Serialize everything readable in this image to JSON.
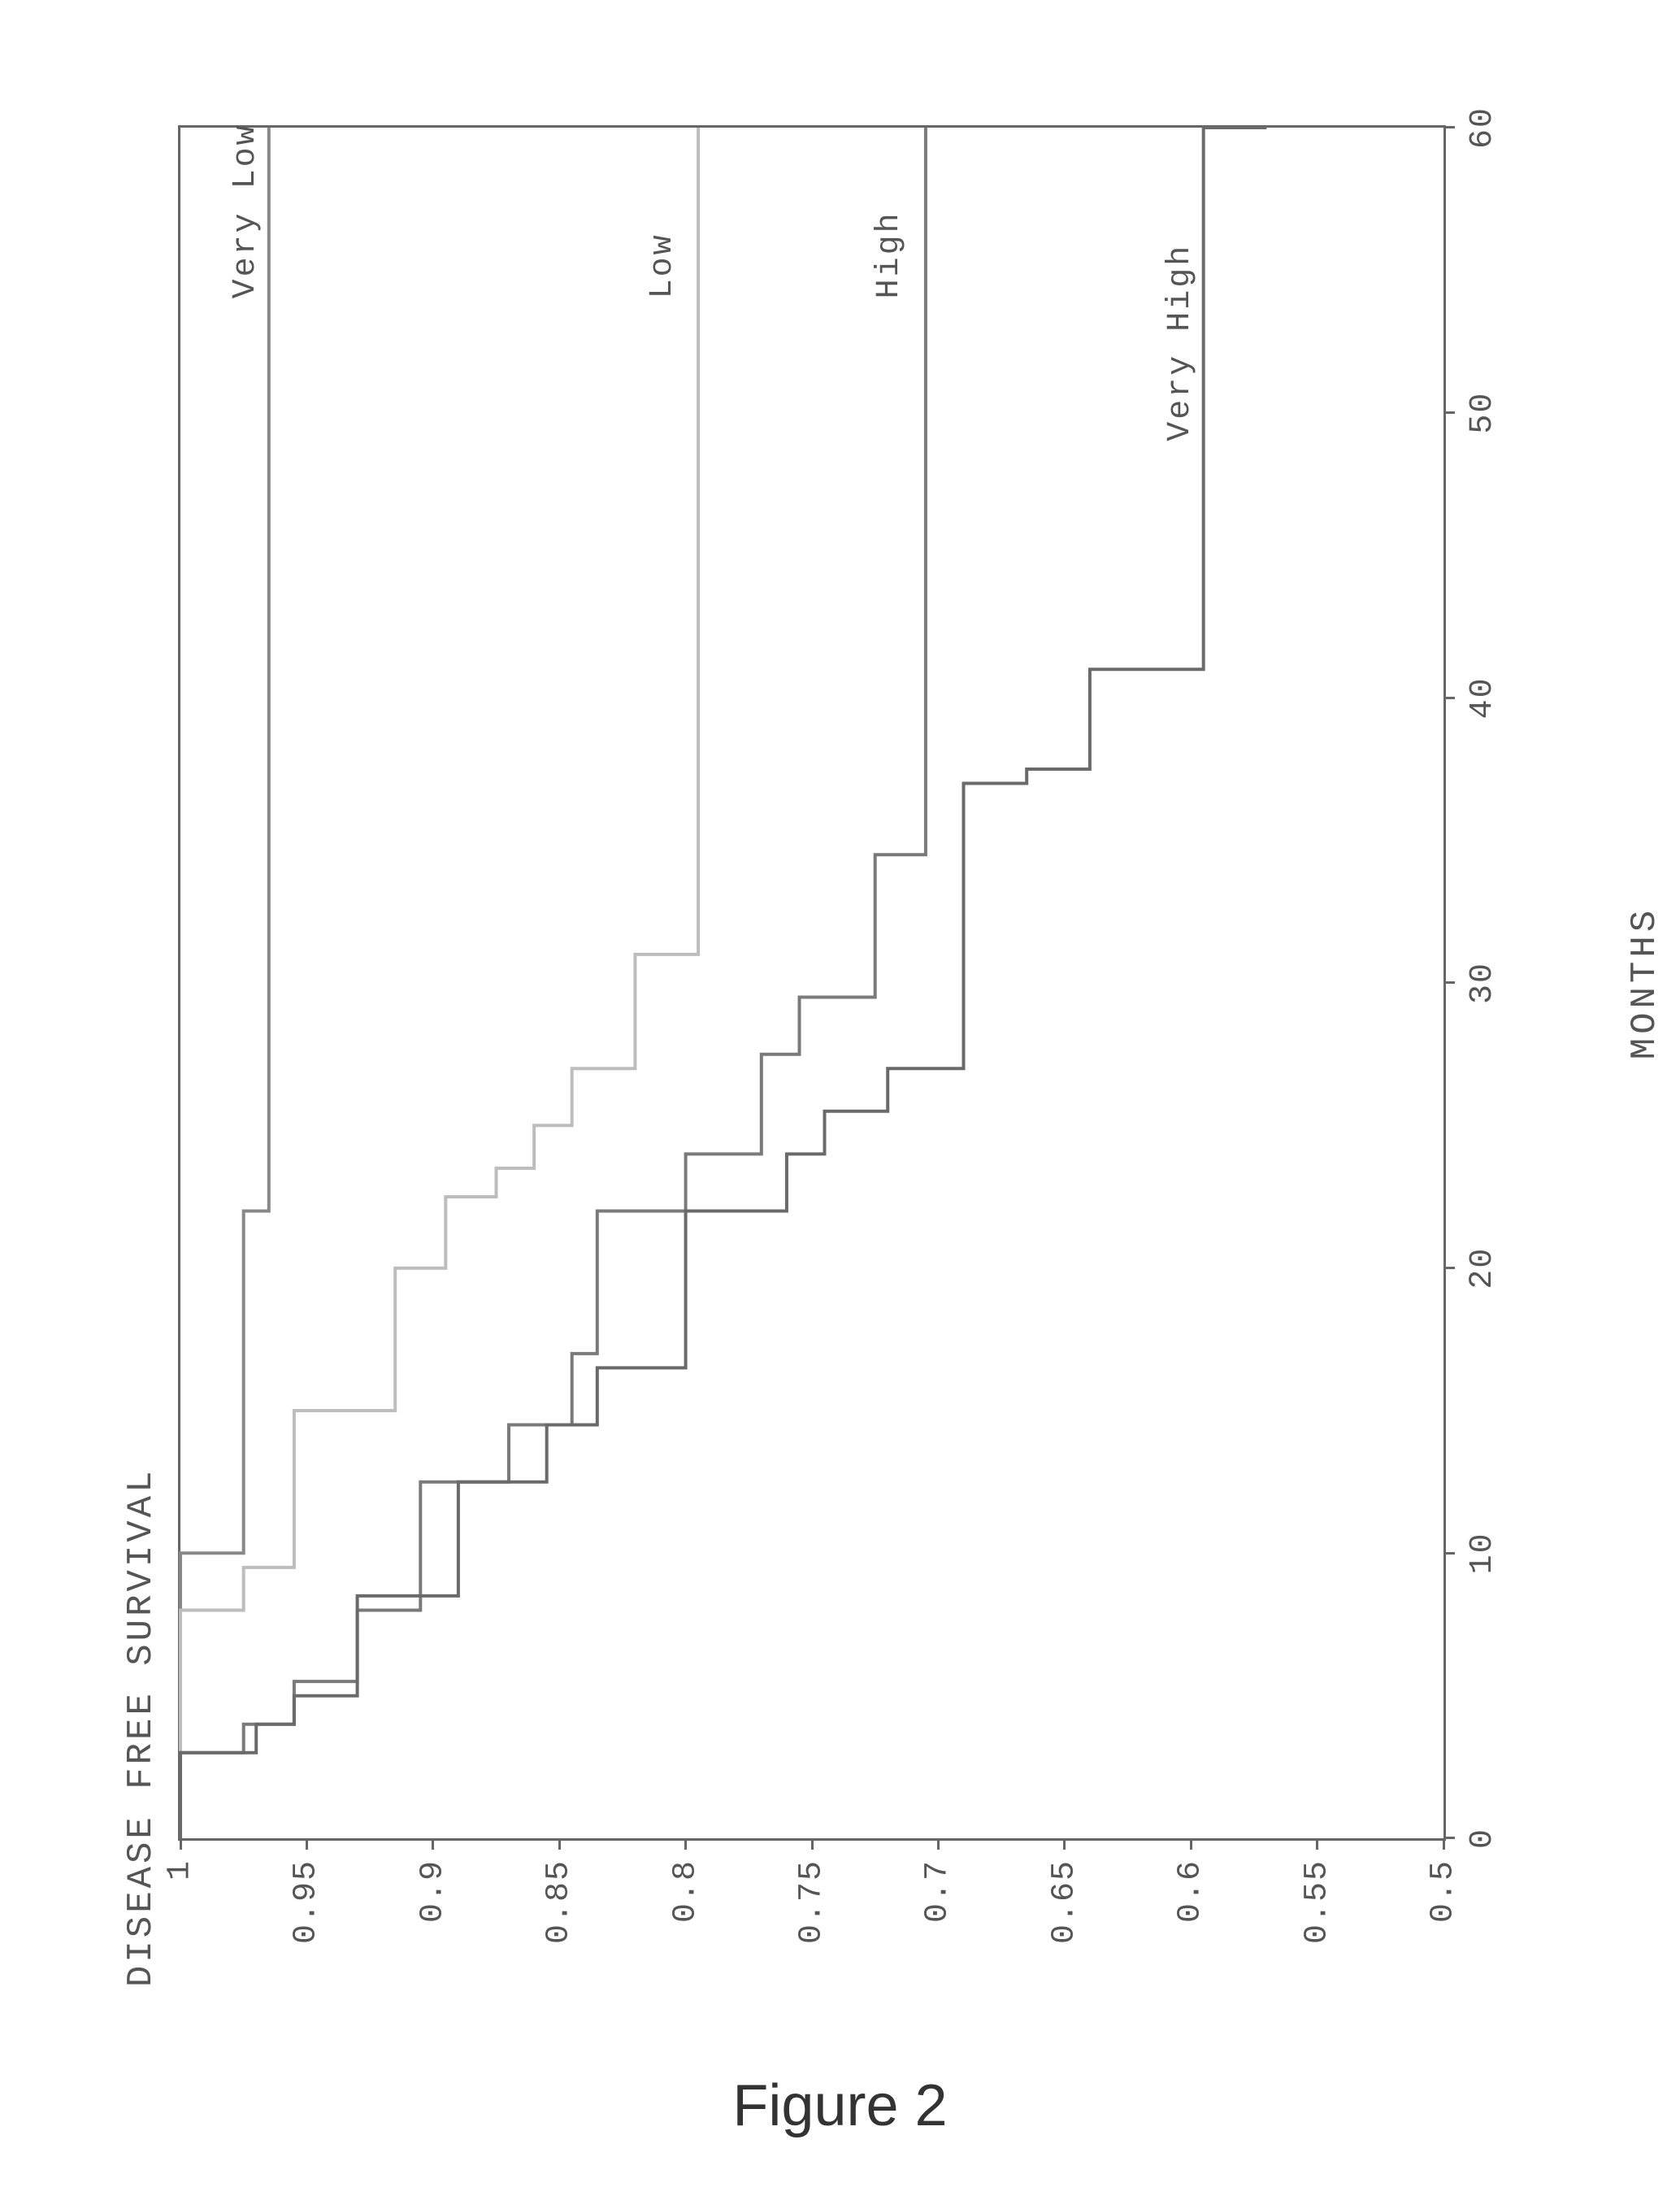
{
  "figure_caption": "Figure 2",
  "chart": {
    "type": "step-line",
    "title": "DISEASE FREE SURVIVAL",
    "x_axis": {
      "title": "MONTHS",
      "lim": [
        0,
        60
      ],
      "tick_step": 10,
      "ticks": [
        0,
        10,
        20,
        30,
        40,
        50,
        60
      ]
    },
    "y_axis": {
      "lim": [
        0.5,
        1.0
      ],
      "tick_step": 0.05,
      "ticks": [
        1,
        0.95,
        0.9,
        0.85,
        0.8,
        0.75,
        0.7,
        0.65,
        0.6,
        0.55,
        0.5
      ]
    },
    "background_color": "#ffffff",
    "axis_color": "#666666",
    "text_color": "#555555",
    "tick_label_fontsize": 40,
    "title_fontsize": 44,
    "line_width": 4,
    "font_family": "Courier New",
    "series": [
      {
        "name": "Very Low",
        "label": "Very Low",
        "color": "#888888",
        "label_pos": {
          "x": 54,
          "y": 0.975
        },
        "points": [
          [
            0,
            1.0
          ],
          [
            10,
            1.0
          ],
          [
            10,
            0.975
          ],
          [
            22,
            0.975
          ],
          [
            22,
            0.965
          ],
          [
            60,
            0.965
          ]
        ]
      },
      {
        "name": "Low",
        "label": "Low",
        "color": "#bdbdbd",
        "label_pos": {
          "x": 54,
          "y": 0.81
        },
        "points": [
          [
            0,
            1.0
          ],
          [
            8,
            1.0
          ],
          [
            8,
            0.975
          ],
          [
            9.5,
            0.975
          ],
          [
            9.5,
            0.955
          ],
          [
            15,
            0.955
          ],
          [
            15,
            0.915
          ],
          [
            20,
            0.915
          ],
          [
            20,
            0.895
          ],
          [
            22.5,
            0.895
          ],
          [
            22.5,
            0.875
          ],
          [
            23.5,
            0.875
          ],
          [
            23.5,
            0.86
          ],
          [
            25,
            0.86
          ],
          [
            25,
            0.845
          ],
          [
            27,
            0.845
          ],
          [
            27,
            0.82
          ],
          [
            31,
            0.82
          ],
          [
            31,
            0.795
          ],
          [
            60,
            0.795
          ]
        ]
      },
      {
        "name": "High",
        "label": "High",
        "color": "#7a7a7a",
        "label_pos": {
          "x": 54,
          "y": 0.72
        },
        "points": [
          [
            0,
            1.0
          ],
          [
            3,
            1.0
          ],
          [
            3,
            0.975
          ],
          [
            4,
            0.975
          ],
          [
            4,
            0.955
          ],
          [
            5.5,
            0.955
          ],
          [
            5.5,
            0.93
          ],
          [
            8,
            0.93
          ],
          [
            8,
            0.905
          ],
          [
            12.5,
            0.905
          ],
          [
            12.5,
            0.87
          ],
          [
            14.5,
            0.87
          ],
          [
            14.5,
            0.845
          ],
          [
            17,
            0.845
          ],
          [
            17,
            0.835
          ],
          [
            22,
            0.835
          ],
          [
            22,
            0.8
          ],
          [
            24,
            0.8
          ],
          [
            24,
            0.77
          ],
          [
            27.5,
            0.77
          ],
          [
            27.5,
            0.755
          ],
          [
            29.5,
            0.755
          ],
          [
            29.5,
            0.725
          ],
          [
            34.5,
            0.725
          ],
          [
            34.5,
            0.705
          ],
          [
            60,
            0.705
          ]
        ]
      },
      {
        "name": "Very High",
        "label": "Very High",
        "color": "#6a6a6a",
        "label_pos": {
          "x": 49,
          "y": 0.605
        },
        "points": [
          [
            0,
            1.0
          ],
          [
            3,
            1.0
          ],
          [
            3,
            0.97
          ],
          [
            4,
            0.97
          ],
          [
            4,
            0.955
          ],
          [
            5,
            0.955
          ],
          [
            5,
            0.93
          ],
          [
            8.5,
            0.93
          ],
          [
            8.5,
            0.89
          ],
          [
            12.5,
            0.89
          ],
          [
            12.5,
            0.855
          ],
          [
            14.5,
            0.855
          ],
          [
            14.5,
            0.835
          ],
          [
            16.5,
            0.835
          ],
          [
            16.5,
            0.8
          ],
          [
            22,
            0.8
          ],
          [
            22,
            0.76
          ],
          [
            24,
            0.76
          ],
          [
            24,
            0.745
          ],
          [
            25.5,
            0.745
          ],
          [
            25.5,
            0.72
          ],
          [
            27,
            0.72
          ],
          [
            27,
            0.69
          ],
          [
            37,
            0.69
          ],
          [
            37,
            0.665
          ],
          [
            37.5,
            0.665
          ],
          [
            37.5,
            0.64
          ],
          [
            41,
            0.64
          ],
          [
            41,
            0.595
          ],
          [
            60,
            0.595
          ],
          [
            60,
            0.57
          ]
        ]
      }
    ]
  }
}
